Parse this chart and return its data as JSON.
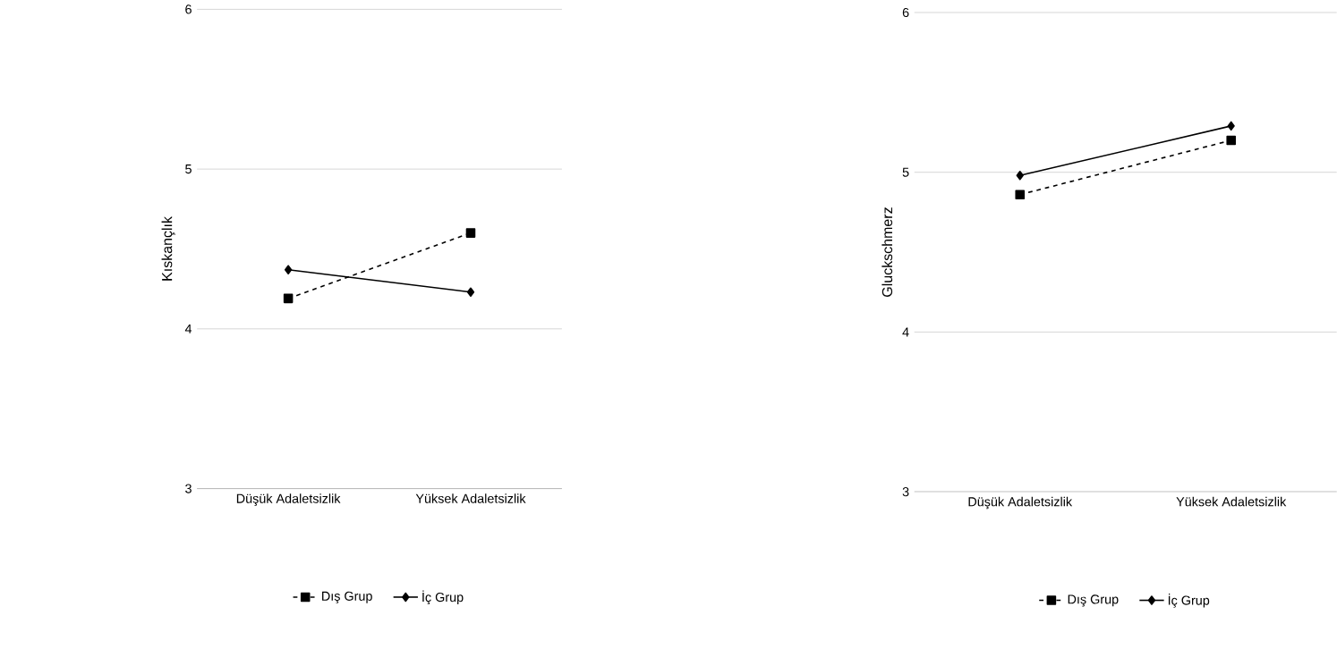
{
  "chart_data": [
    {
      "type": "line",
      "ylabel": "Kıskançlık",
      "categories": [
        "Düşük Adaletsizlik",
        "Yüksek Adaletsizlik"
      ],
      "ylim": [
        3,
        6
      ],
      "yticks": [
        3,
        4,
        5,
        6
      ],
      "grid": "y",
      "legend": "bottom",
      "series": [
        {
          "name": "Dış Grup",
          "color": "#000000",
          "values": [
            4.19,
            4.6
          ],
          "marker": "square",
          "line_style": "dashed"
        },
        {
          "name": "İç Grup",
          "color": "#000000",
          "values": [
            4.37,
            4.23
          ],
          "marker": "diamond",
          "line_style": "solid"
        }
      ]
    },
    {
      "type": "line",
      "ylabel": "Gluckschmerz",
      "categories": [
        "Düşük Adaletsizlik",
        "Yüksek Adaletsizlik"
      ],
      "ylim": [
        3,
        6
      ],
      "yticks": [
        3,
        4,
        5,
        6
      ],
      "grid": "y",
      "legend": "bottom",
      "series": [
        {
          "name": "Dış Grup",
          "color": "#000000",
          "values": [
            4.86,
            5.2
          ],
          "marker": "square",
          "line_style": "dashed"
        },
        {
          "name": "İç Grup",
          "color": "#000000",
          "values": [
            4.98,
            5.29
          ],
          "marker": "diamond",
          "line_style": "solid"
        }
      ]
    }
  ]
}
